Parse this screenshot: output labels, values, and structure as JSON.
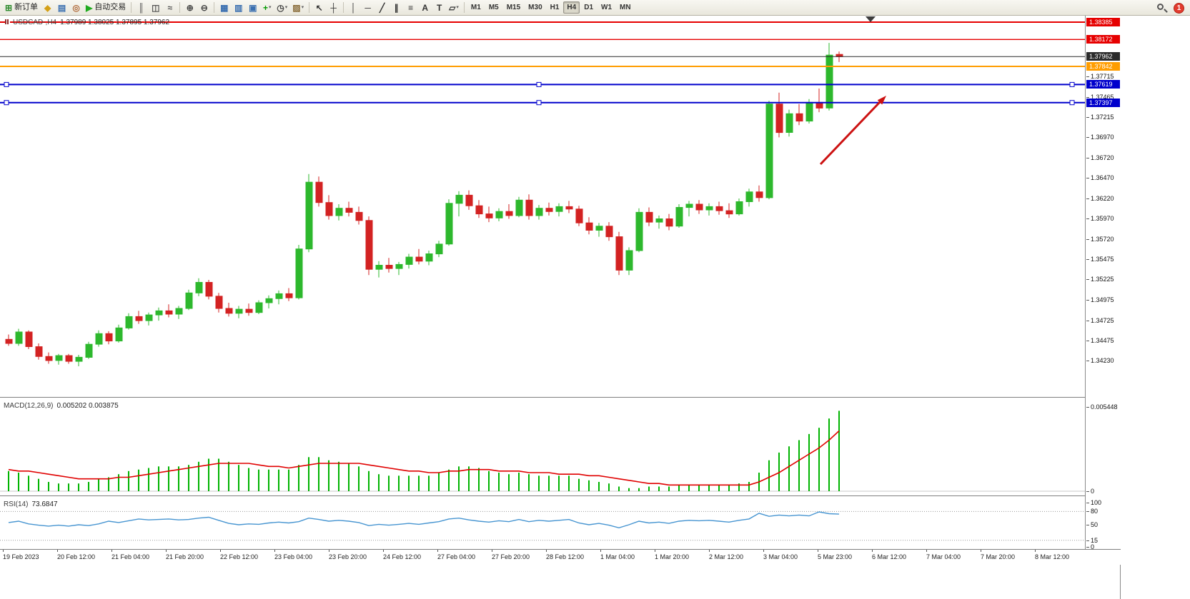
{
  "toolbar": {
    "items": [
      {
        "type": "button",
        "name": "new-order-button",
        "glyph": "⊞",
        "color": "#2d8a2d",
        "label": "新订单"
      },
      {
        "type": "icon",
        "name": "market-watch-icon",
        "glyph": "◆",
        "color": "#d4a017"
      },
      {
        "type": "icon",
        "name": "data-window-icon",
        "glyph": "▤",
        "color": "#3a6fb0"
      },
      {
        "type": "icon",
        "name": "navigator-icon",
        "glyph": "◎",
        "color": "#b06a3a"
      },
      {
        "type": "button",
        "name": "autotrading-button",
        "glyph": "▶",
        "color": "#1faa1f",
        "label": "自动交易"
      },
      {
        "type": "sep"
      },
      {
        "type": "icon",
        "name": "bar-chart-icon",
        "glyph": "║",
        "color": "#555555"
      },
      {
        "type": "icon",
        "name": "candlestick-chart-icon",
        "glyph": "◫",
        "color": "#555555"
      },
      {
        "type": "icon",
        "name": "line-chart-icon",
        "glyph": "≈",
        "color": "#555555"
      },
      {
        "type": "sep"
      },
      {
        "type": "icon",
        "name": "zoom-in-icon",
        "glyph": "⊕",
        "color": "#444444"
      },
      {
        "type": "icon",
        "name": "zoom-out-icon",
        "glyph": "⊖",
        "color": "#444444"
      },
      {
        "type": "sep"
      },
      {
        "type": "icon",
        "name": "tile-windows-icon",
        "glyph": "▦",
        "color": "#3a6fb0"
      },
      {
        "type": "icon",
        "name": "tile-horizontal-icon",
        "glyph": "▥",
        "color": "#3a6fb0"
      },
      {
        "type": "icon",
        "name": "tile-vertical-icon",
        "glyph": "▣",
        "color": "#3a6fb0"
      },
      {
        "type": "icon",
        "name": "indicators-icon",
        "glyph": "+",
        "color": "#009900",
        "caret": true
      },
      {
        "type": "icon",
        "name": "periods-icon",
        "glyph": "◷",
        "color": "#444444",
        "caret": true
      },
      {
        "type": "icon",
        "name": "templates-icon",
        "glyph": "▨",
        "color": "#8a6d3b",
        "caret": true
      },
      {
        "type": "sep"
      },
      {
        "type": "icon",
        "name": "cursor-icon",
        "glyph": "↖",
        "color": "#333333"
      },
      {
        "type": "icon",
        "name": "crosshair-icon",
        "glyph": "┼",
        "color": "#333333"
      },
      {
        "type": "sep"
      },
      {
        "type": "icon",
        "name": "vertical-line-icon",
        "glyph": "│",
        "color": "#333333"
      },
      {
        "type": "icon",
        "name": "horizontal-line-icon",
        "glyph": "─",
        "color": "#333333"
      },
      {
        "type": "icon",
        "name": "trendline-icon",
        "glyph": "╱",
        "color": "#333333"
      },
      {
        "type": "icon",
        "name": "channel-icon",
        "glyph": "∥",
        "color": "#333333"
      },
      {
        "type": "icon",
        "name": "fibonacci-icon",
        "glyph": "≡",
        "color": "#333333"
      },
      {
        "type": "icon",
        "name": "text-icon",
        "glyph": "A",
        "color": "#333333"
      },
      {
        "type": "icon",
        "name": "text-label-icon",
        "glyph": "T",
        "color": "#333333"
      },
      {
        "type": "icon",
        "name": "shapes-icon",
        "glyph": "▱",
        "color": "#333333",
        "caret": true
      },
      {
        "type": "sep"
      }
    ],
    "timeframes": [
      "M1",
      "M5",
      "M15",
      "M30",
      "H1",
      "H4",
      "D1",
      "W1",
      "MN"
    ],
    "active_timeframe": "H4",
    "notification_badge": "1"
  },
  "chart": {
    "symbol": "USDCAD-,H4",
    "ohlc": "1.37989 1.38025 1.37895 1.37962",
    "current_price": {
      "label": "1.37962",
      "value": 1.37962,
      "color": "#2b2b2b"
    },
    "hlines": [
      {
        "label": "1.38385",
        "value": 1.38385,
        "color": "#e60000",
        "width": 2,
        "handles": false
      },
      {
        "label": "1.38172",
        "value": 1.38172,
        "color": "#e60000",
        "width": 1.4,
        "handles": false
      },
      {
        "label": "1.37842",
        "value": 1.37842,
        "color": "#ff9d00",
        "width": 2,
        "handles": false
      },
      {
        "label": "1.37619",
        "value": 1.37619,
        "color": "#0000cc",
        "width": 2,
        "handles": true
      },
      {
        "label": "1.37397",
        "value": 1.37397,
        "color": "#0000cc",
        "width": 2,
        "handles": true
      }
    ],
    "price_scale_labels": [
      "1.37715",
      "1.37465",
      "1.37215",
      "1.36970",
      "1.36720",
      "1.36470",
      "1.36220",
      "1.35970",
      "1.35720",
      "1.35475",
      "1.35225",
      "1.34975",
      "1.34725",
      "1.34475",
      "1.34230"
    ],
    "arrow": {
      "color": "#cc1111"
    },
    "colors": {
      "up": "#2db82d",
      "down": "#d32222",
      "macd_hist": "#00b400",
      "macd_signal": "#e00000",
      "rsi_line": "#4795d1"
    }
  },
  "indicators": {
    "macd": {
      "title": "MACD(12,26,9)",
      "values_text": "0.005202 0.003875",
      "max_label": "0.005448",
      "max_value": 0.005448,
      "zero_label": "0"
    },
    "rsi": {
      "title": "RSI(14)",
      "value_text": "73.6847",
      "scale_labels": [
        "100",
        "80",
        "50",
        "15",
        "0"
      ],
      "levels": [
        80,
        15
      ]
    }
  },
  "chart_data": {
    "type": "candlestick",
    "symbol": "USDCAD",
    "timeframe": "H4",
    "time_labels": [
      "19 Feb 2023",
      "20 Feb 12:00",
      "21 Feb 04:00",
      "21 Feb 20:00",
      "22 Feb 12:00",
      "23 Feb 04:00",
      "23 Feb 20:00",
      "24 Feb 12:00",
      "27 Feb 04:00",
      "27 Feb 20:00",
      "28 Feb 12:00",
      "1 Mar 04:00",
      "1 Mar 20:00",
      "2 Mar 12:00",
      "3 Mar 04:00",
      "5 Mar 23:00",
      "6 Mar 12:00",
      "7 Mar 04:00",
      "7 Mar 20:00",
      "8 Mar 12:00"
    ],
    "candles": [
      [
        1.3449,
        1.3455,
        1.3441,
        1.3444
      ],
      [
        1.3444,
        1.3462,
        1.3441,
        1.3458
      ],
      [
        1.3458,
        1.346,
        1.3437,
        1.344
      ],
      [
        1.344,
        1.3444,
        1.3424,
        1.3428
      ],
      [
        1.3428,
        1.3433,
        1.3419,
        1.3423
      ],
      [
        1.3423,
        1.3431,
        1.3418,
        1.3429
      ],
      [
        1.3429,
        1.3431,
        1.3419,
        1.3422
      ],
      [
        1.3422,
        1.343,
        1.3416,
        1.3427
      ],
      [
        1.3427,
        1.3446,
        1.3425,
        1.3443
      ],
      [
        1.3443,
        1.346,
        1.344,
        1.3456
      ],
      [
        1.3456,
        1.3459,
        1.3443,
        1.3447
      ],
      [
        1.3447,
        1.3467,
        1.3445,
        1.3463
      ],
      [
        1.3463,
        1.3481,
        1.3461,
        1.3477
      ],
      [
        1.3477,
        1.3484,
        1.3468,
        1.3472
      ],
      [
        1.3472,
        1.3482,
        1.3466,
        1.3479
      ],
      [
        1.3479,
        1.3488,
        1.3472,
        1.3484
      ],
      [
        1.3484,
        1.3492,
        1.3476,
        1.348
      ],
      [
        1.348,
        1.349,
        1.3474,
        1.3487
      ],
      [
        1.3487,
        1.351,
        1.3485,
        1.3506
      ],
      [
        1.3506,
        1.3524,
        1.3502,
        1.3519
      ],
      [
        1.3519,
        1.3522,
        1.3498,
        1.3502
      ],
      [
        1.3502,
        1.3506,
        1.3482,
        1.3487
      ],
      [
        1.3487,
        1.3494,
        1.3477,
        1.3481
      ],
      [
        1.3481,
        1.349,
        1.3475,
        1.3486
      ],
      [
        1.3486,
        1.3493,
        1.3478,
        1.3482
      ],
      [
        1.3482,
        1.3497,
        1.348,
        1.3494
      ],
      [
        1.3494,
        1.3503,
        1.3487,
        1.3499
      ],
      [
        1.3499,
        1.3509,
        1.3492,
        1.3505
      ],
      [
        1.3505,
        1.3512,
        1.3496,
        1.35
      ],
      [
        1.35,
        1.3565,
        1.3498,
        1.356
      ],
      [
        1.356,
        1.3652,
        1.3556,
        1.3642
      ],
      [
        1.3642,
        1.3649,
        1.3612,
        1.3617
      ],
      [
        1.3617,
        1.3626,
        1.3596,
        1.3601
      ],
      [
        1.3601,
        1.3615,
        1.3595,
        1.361
      ],
      [
        1.361,
        1.3618,
        1.36,
        1.3605
      ],
      [
        1.3605,
        1.3612,
        1.359,
        1.3595
      ],
      [
        1.3595,
        1.36,
        1.3528,
        1.3535
      ],
      [
        1.3535,
        1.3545,
        1.3525,
        1.354
      ],
      [
        1.354,
        1.3549,
        1.3531,
        1.3536
      ],
      [
        1.3536,
        1.3544,
        1.3528,
        1.3541
      ],
      [
        1.3541,
        1.3554,
        1.3536,
        1.355
      ],
      [
        1.355,
        1.356,
        1.3541,
        1.3545
      ],
      [
        1.3545,
        1.3558,
        1.354,
        1.3554
      ],
      [
        1.3554,
        1.357,
        1.355,
        1.3566
      ],
      [
        1.3566,
        1.3621,
        1.3564,
        1.3616
      ],
      [
        1.3616,
        1.3631,
        1.36,
        1.3626
      ],
      [
        1.3626,
        1.3632,
        1.3608,
        1.3613
      ],
      [
        1.3613,
        1.362,
        1.3598,
        1.3603
      ],
      [
        1.3603,
        1.3612,
        1.3593,
        1.3598
      ],
      [
        1.3598,
        1.361,
        1.3594,
        1.3606
      ],
      [
        1.3606,
        1.3615,
        1.3597,
        1.3601
      ],
      [
        1.3601,
        1.3624,
        1.3599,
        1.362
      ],
      [
        1.362,
        1.3627,
        1.3596,
        1.3601
      ],
      [
        1.3601,
        1.3614,
        1.3596,
        1.361
      ],
      [
        1.361,
        1.3617,
        1.3601,
        1.3606
      ],
      [
        1.3606,
        1.3616,
        1.36,
        1.3612
      ],
      [
        1.3612,
        1.3619,
        1.3604,
        1.3609
      ],
      [
        1.3609,
        1.3613,
        1.3588,
        1.3592
      ],
      [
        1.3592,
        1.3599,
        1.3578,
        1.3583
      ],
      [
        1.3583,
        1.3592,
        1.3575,
        1.3588
      ],
      [
        1.3588,
        1.3593,
        1.357,
        1.3575
      ],
      [
        1.3575,
        1.3581,
        1.3528,
        1.3534
      ],
      [
        1.3534,
        1.3562,
        1.3528,
        1.3558
      ],
      [
        1.3558,
        1.361,
        1.3556,
        1.3605
      ],
      [
        1.3605,
        1.3611,
        1.3588,
        1.3593
      ],
      [
        1.3593,
        1.3601,
        1.3585,
        1.3597
      ],
      [
        1.3597,
        1.3603,
        1.3583,
        1.3588
      ],
      [
        1.3588,
        1.3615,
        1.3586,
        1.3611
      ],
      [
        1.3611,
        1.3619,
        1.36,
        1.3615
      ],
      [
        1.3615,
        1.362,
        1.3603,
        1.3608
      ],
      [
        1.3608,
        1.3616,
        1.3601,
        1.3612
      ],
      [
        1.3612,
        1.3618,
        1.3602,
        1.3607
      ],
      [
        1.3607,
        1.3616,
        1.3598,
        1.3603
      ],
      [
        1.3603,
        1.3622,
        1.3601,
        1.3618
      ],
      [
        1.3618,
        1.3634,
        1.3612,
        1.363
      ],
      [
        1.363,
        1.3638,
        1.3618,
        1.3623
      ],
      [
        1.3623,
        1.3742,
        1.3621,
        1.3738
      ],
      [
        1.3738,
        1.3752,
        1.3697,
        1.3703
      ],
      [
        1.3703,
        1.3731,
        1.3698,
        1.3726
      ],
      [
        1.3726,
        1.3738,
        1.3712,
        1.3717
      ],
      [
        1.3717,
        1.3744,
        1.3714,
        1.374
      ],
      [
        1.374,
        1.3757,
        1.3728,
        1.3733
      ],
      [
        1.3733,
        1.3813,
        1.373,
        1.3798
      ],
      [
        1.37989,
        1.38025,
        1.37895,
        1.37962
      ]
    ],
    "macd_histogram": [
      0.0013,
      0.0012,
      0.001,
      0.0008,
      0.0006,
      0.0005,
      0.0005,
      0.0005,
      0.0006,
      0.0008,
      0.0009,
      0.0011,
      0.0013,
      0.0014,
      0.0015,
      0.0016,
      0.0016,
      0.0016,
      0.0017,
      0.0019,
      0.0021,
      0.0021,
      0.0019,
      0.0017,
      0.0015,
      0.0014,
      0.0014,
      0.0014,
      0.0014,
      0.0017,
      0.0022,
      0.0022,
      0.002,
      0.0019,
      0.0018,
      0.0016,
      0.0013,
      0.0011,
      0.001,
      0.001,
      0.001,
      0.001,
      0.001,
      0.0012,
      0.0014,
      0.0016,
      0.0016,
      0.0015,
      0.0013,
      0.0012,
      0.0011,
      0.0012,
      0.0011,
      0.001,
      0.001,
      0.001,
      0.001,
      0.0008,
      0.0007,
      0.0006,
      0.0005,
      0.0003,
      0.0002,
      0.0002,
      0.0003,
      0.0003,
      0.0003,
      0.0004,
      0.0004,
      0.0004,
      0.0004,
      0.0004,
      0.0004,
      0.0005,
      0.0006,
      0.0012,
      0.002,
      0.0025,
      0.0029,
      0.0033,
      0.0037,
      0.0041,
      0.0047,
      0.0052
    ],
    "macd_signal": [
      0.0014,
      0.0013,
      0.0013,
      0.0012,
      0.0011,
      0.001,
      0.0009,
      0.0008,
      0.0008,
      0.0008,
      0.0008,
      0.0009,
      0.0009,
      0.001,
      0.0011,
      0.0012,
      0.0013,
      0.0014,
      0.0015,
      0.0016,
      0.0017,
      0.0018,
      0.0018,
      0.0018,
      0.0018,
      0.0017,
      0.0016,
      0.0016,
      0.0015,
      0.0016,
      0.0017,
      0.0018,
      0.0018,
      0.0018,
      0.0018,
      0.0018,
      0.0017,
      0.0016,
      0.0015,
      0.0014,
      0.0013,
      0.0013,
      0.0012,
      0.0012,
      0.0013,
      0.0013,
      0.0014,
      0.0014,
      0.0014,
      0.0013,
      0.0013,
      0.0013,
      0.0012,
      0.0012,
      0.0012,
      0.0011,
      0.0011,
      0.0011,
      0.001,
      0.001,
      0.0009,
      0.0008,
      0.0007,
      0.0006,
      0.0005,
      0.0005,
      0.0004,
      0.0004,
      0.0004,
      0.0004,
      0.0004,
      0.0004,
      0.0004,
      0.0004,
      0.0004,
      0.0006,
      0.0009,
      0.0012,
      0.0016,
      0.002,
      0.0024,
      0.0028,
      0.0033,
      0.0039
    ],
    "rsi_values": [
      55,
      58,
      52,
      49,
      47,
      49,
      47,
      50,
      48,
      52,
      58,
      55,
      59,
      63,
      61,
      62,
      63,
      61,
      62,
      65,
      67,
      60,
      53,
      50,
      52,
      51,
      54,
      56,
      54,
      57,
      65,
      62,
      58,
      60,
      58,
      55,
      48,
      51,
      49,
      51,
      53,
      51,
      54,
      57,
      63,
      65,
      61,
      58,
      56,
      59,
      57,
      62,
      57,
      60,
      58,
      60,
      62,
      54,
      50,
      53,
      49,
      43,
      50,
      58,
      54,
      56,
      53,
      58,
      60,
      59,
      60,
      58,
      56,
      60,
      63,
      76,
      69,
      72,
      70,
      72,
      70,
      79,
      75,
      74
    ]
  }
}
